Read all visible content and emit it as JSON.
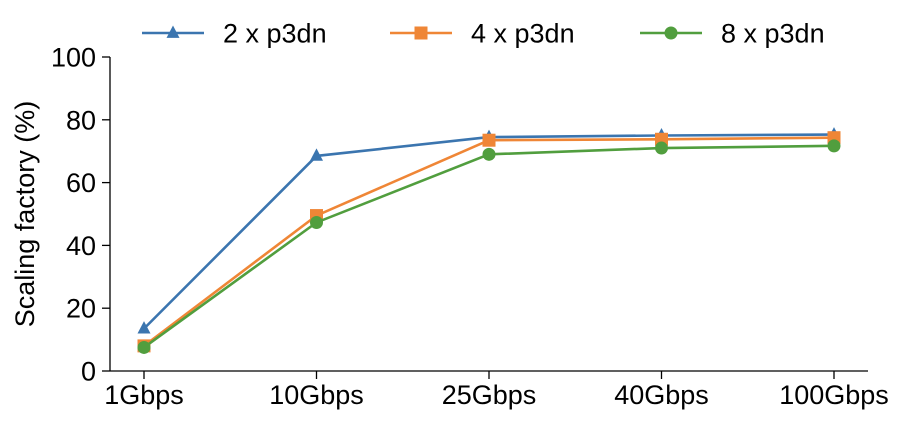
{
  "chart_data": {
    "type": "line",
    "categories": [
      "1Gbps",
      "10Gbps",
      "25Gbps",
      "40Gbps",
      "100Gbps"
    ],
    "ylabel": "Scaling factory (%)",
    "xlabel": "",
    "ylim": [
      0,
      100
    ],
    "yticks": [
      0,
      20,
      40,
      60,
      80,
      100
    ],
    "grid": false,
    "legend_position": "top",
    "series": [
      {
        "name": "2 x p3dn",
        "color": "#3b75af",
        "marker": "triangle",
        "values": [
          13.5,
          68.5,
          74.5,
          75,
          75.3
        ]
      },
      {
        "name": "4 x p3dn",
        "color": "#ef8636",
        "marker": "square",
        "values": [
          8,
          49.5,
          73.5,
          73.8,
          74.3
        ]
      },
      {
        "name": "8 x p3dn",
        "color": "#519e3e",
        "marker": "circle",
        "values": [
          7.5,
          47.3,
          69,
          71,
          71.7
        ]
      }
    ]
  }
}
